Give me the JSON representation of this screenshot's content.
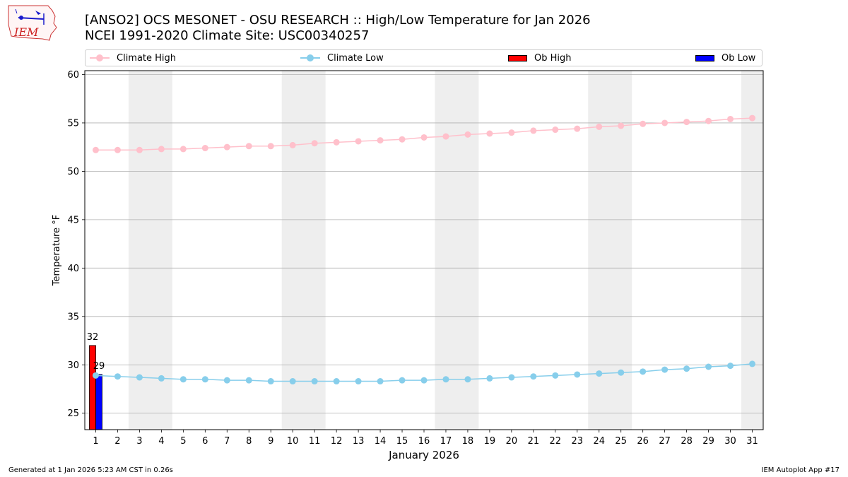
{
  "header": {
    "title_line1": "[ANSO2] OCS MESONET - OSU RESEARCH :: High/Low Temperature for Jan 2026",
    "title_line2": "NCEI 1991-2020 Climate Site: USC00340257",
    "logo_text": "IEM"
  },
  "legend": {
    "climate_high": "Climate High",
    "climate_low": "Climate Low",
    "ob_high": "Ob High",
    "ob_low": "Ob Low"
  },
  "colors": {
    "climate_high": "#ffc0cb",
    "climate_low": "#87ceeb",
    "ob_high": "#ff0000",
    "ob_low": "#0000ff",
    "weekend_band": "#eeeeee",
    "grid": "#b0b0b0"
  },
  "chart_data": {
    "type": "bar",
    "title": "[ANSO2] OCS MESONET - OSU RESEARCH :: High/Low Temperature for Jan 2026",
    "xlabel": "January 2026",
    "ylabel": "Temperature °F",
    "x": [
      1,
      2,
      3,
      4,
      5,
      6,
      7,
      8,
      9,
      10,
      11,
      12,
      13,
      14,
      15,
      16,
      17,
      18,
      19,
      20,
      21,
      22,
      23,
      24,
      25,
      26,
      27,
      28,
      29,
      30,
      31
    ],
    "xlim": [
      0.5,
      31.5
    ],
    "ylim": [
      23.3,
      60.4
    ],
    "yticks": [
      25,
      30,
      35,
      40,
      45,
      50,
      55,
      60
    ],
    "grid": "horizontal",
    "legend_position": "top",
    "weekend_bands": [
      [
        3,
        4
      ],
      [
        10,
        11
      ],
      [
        17,
        18
      ],
      [
        24,
        25
      ],
      [
        31,
        31
      ]
    ],
    "series": [
      {
        "name": "Climate High",
        "kind": "line",
        "values": [
          52.2,
          52.2,
          52.2,
          52.3,
          52.3,
          52.4,
          52.5,
          52.6,
          52.6,
          52.7,
          52.9,
          53.0,
          53.1,
          53.2,
          53.3,
          53.5,
          53.6,
          53.8,
          53.9,
          54.0,
          54.2,
          54.3,
          54.4,
          54.6,
          54.7,
          54.9,
          55.0,
          55.1,
          55.2,
          55.4,
          55.5
        ]
      },
      {
        "name": "Climate Low",
        "kind": "line",
        "values": [
          28.9,
          28.8,
          28.7,
          28.6,
          28.5,
          28.5,
          28.4,
          28.4,
          28.3,
          28.3,
          28.3,
          28.3,
          28.3,
          28.3,
          28.4,
          28.4,
          28.5,
          28.5,
          28.6,
          28.7,
          28.8,
          28.9,
          29.0,
          29.1,
          29.2,
          29.3,
          29.5,
          29.6,
          29.8,
          29.9,
          30.1
        ]
      },
      {
        "name": "Ob High",
        "kind": "bar",
        "x": [
          1
        ],
        "values": [
          32
        ]
      },
      {
        "name": "Ob Low",
        "kind": "bar",
        "x": [
          1
        ],
        "values": [
          29
        ]
      }
    ]
  },
  "footer": {
    "left": "Generated at 1 Jan 2026 5:23 AM CST in 0.26s",
    "right": "IEM Autoplot App #17"
  }
}
